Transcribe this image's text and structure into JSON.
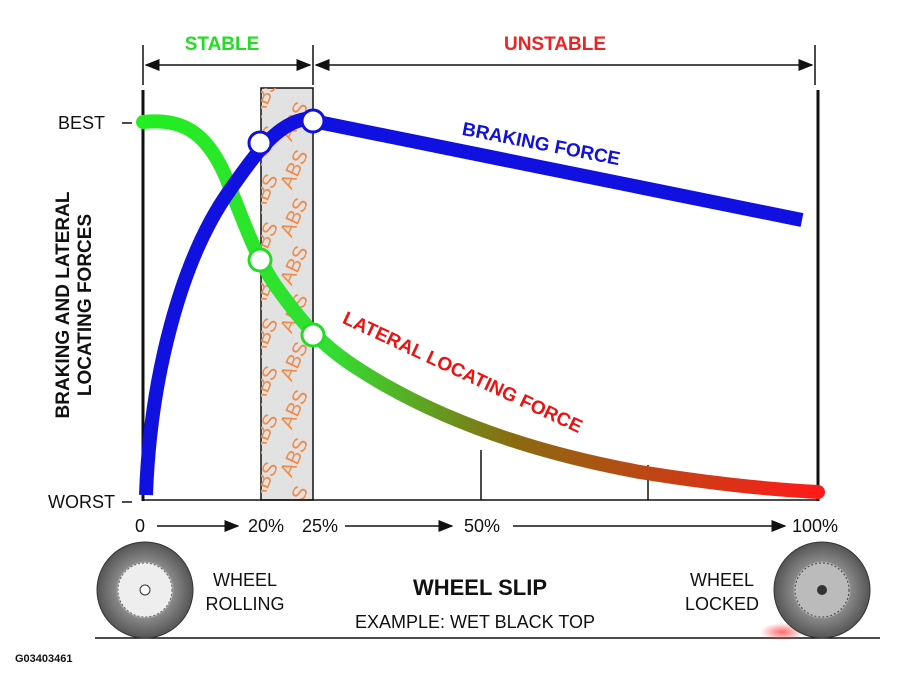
{
  "header": {
    "stable": "STABLE",
    "unstable": "UNSTABLE"
  },
  "y_axis": {
    "title_line1": "BRAKING AND LATERAL",
    "title_line2": "LOCATING FORCES",
    "top": "BEST",
    "bottom": "WORST"
  },
  "band_label": "ABS",
  "curves": {
    "braking": "BRAKING FORCE",
    "lateral": "LATERAL LOCATING FORCE"
  },
  "x_axis": {
    "labels": [
      "0",
      "20%",
      "25%",
      "50%",
      "100%"
    ],
    "title": "WHEEL SLIP",
    "subtitle": "EXAMPLE: WET BLACK TOP"
  },
  "wheels": {
    "left_line1": "WHEEL",
    "left_line2": "ROLLING",
    "right_line1": "WHEEL",
    "right_line2": "LOCKED"
  },
  "figure_code": "G03403461"
}
